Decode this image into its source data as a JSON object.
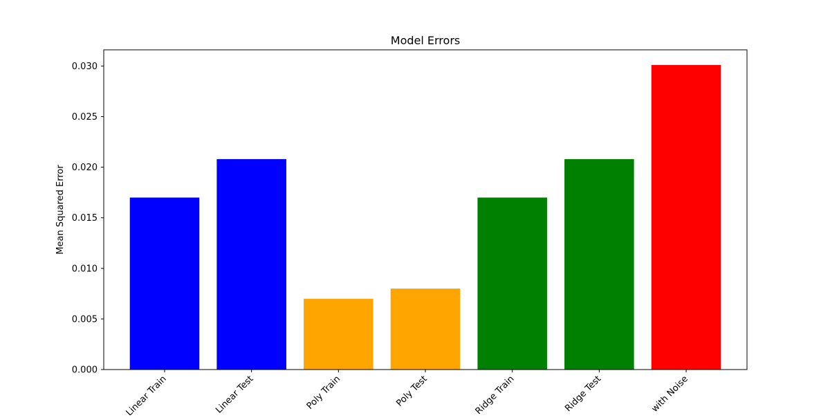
{
  "chart_data": {
    "type": "bar",
    "title": "Model Errors",
    "xlabel": "",
    "ylabel": "Mean Squared Error",
    "categories": [
      "Linear Train",
      "Linear Test",
      "Poly Train",
      "Poly Test",
      "Ridge Train",
      "Ridge Test",
      "with Noise"
    ],
    "values": [
      0.017,
      0.0208,
      0.007,
      0.008,
      0.017,
      0.0208,
      0.0301
    ],
    "colors": [
      "#0000ff",
      "#0000ff",
      "#ffa500",
      "#ffa500",
      "#008000",
      "#008000",
      "#ff0000"
    ],
    "ylim": [
      0,
      0.0316
    ],
    "yticks": [
      0.0,
      0.005,
      0.01,
      0.015,
      0.02,
      0.025,
      0.03
    ],
    "ytick_labels": [
      "0.000",
      "0.005",
      "0.010",
      "0.015",
      "0.020",
      "0.025",
      "0.030"
    ],
    "grid": false,
    "legend": "none"
  }
}
